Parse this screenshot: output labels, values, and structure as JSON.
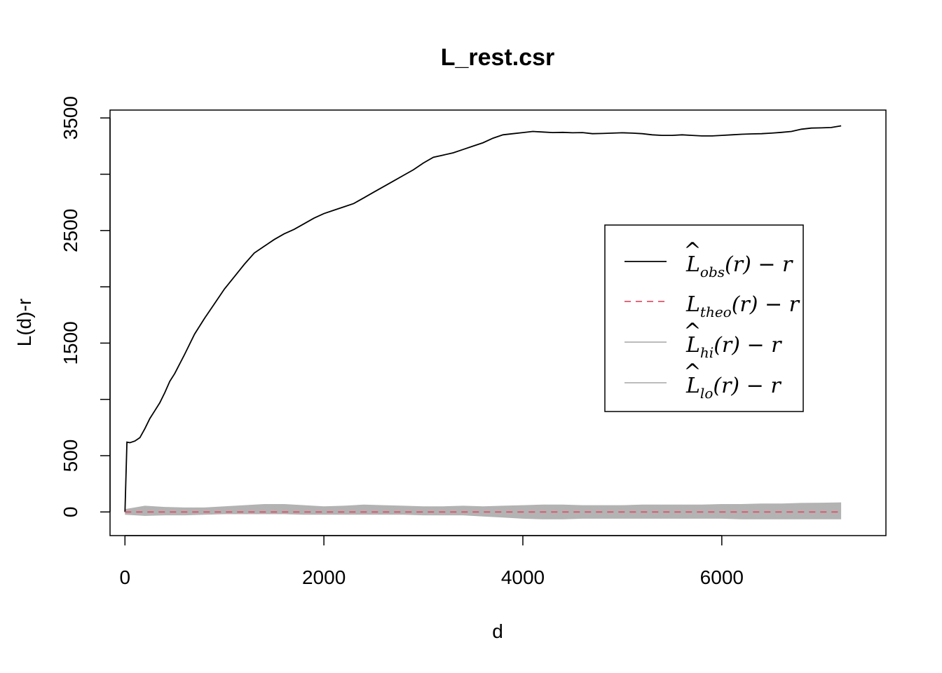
{
  "chart_data": {
    "type": "line",
    "title": "L_rest.csr",
    "xlabel": "d",
    "ylabel": "L(d)-r",
    "xlim": [
      -150,
      7650
    ],
    "ylim": [
      -210,
      3570
    ],
    "x_ticks": [
      0,
      2000,
      4000,
      6000
    ],
    "x_tick_labels": [
      "0",
      "2000",
      "4000",
      "6000"
    ],
    "y_ticks": [
      0,
      500,
      1000,
      1500,
      2000,
      2500,
      3000,
      3500
    ],
    "y_tick_labels": [
      "0",
      "500",
      "",
      "1500",
      "",
      "2500",
      "",
      "3500"
    ],
    "grid": false,
    "legend_position": "right",
    "series": [
      {
        "key": "obs",
        "color": "#000000",
        "style": "solid",
        "x": [
          0,
          20,
          50,
          100,
          150,
          200,
          250,
          300,
          350,
          400,
          450,
          500,
          600,
          700,
          800,
          900,
          1000,
          1100,
          1200,
          1300,
          1400,
          1500,
          1600,
          1700,
          1800,
          1900,
          2000,
          2100,
          2200,
          2300,
          2400,
          2500,
          2600,
          2700,
          2800,
          2900,
          3000,
          3100,
          3200,
          3300,
          3400,
          3500,
          3600,
          3700,
          3800,
          3900,
          4000,
          4100,
          4200,
          4300,
          4400,
          4500,
          4600,
          4700,
          4800,
          4900,
          5000,
          5100,
          5200,
          5300,
          5400,
          5500,
          5600,
          5700,
          5800,
          5900,
          6000,
          6100,
          6200,
          6300,
          6400,
          6500,
          6600,
          6700,
          6800,
          6900,
          7000,
          7100,
          7200
        ],
        "y": [
          0,
          620,
          615,
          630,
          660,
          740,
          830,
          900,
          970,
          1060,
          1160,
          1230,
          1400,
          1580,
          1720,
          1850,
          1980,
          2090,
          2200,
          2300,
          2360,
          2420,
          2470,
          2510,
          2560,
          2610,
          2650,
          2680,
          2710,
          2740,
          2790,
          2840,
          2890,
          2940,
          2990,
          3040,
          3100,
          3150,
          3170,
          3190,
          3220,
          3250,
          3280,
          3320,
          3350,
          3360,
          3370,
          3380,
          3375,
          3370,
          3372,
          3368,
          3370,
          3360,
          3362,
          3365,
          3368,
          3365,
          3360,
          3350,
          3345,
          3345,
          3350,
          3345,
          3340,
          3340,
          3345,
          3350,
          3355,
          3358,
          3360,
          3365,
          3372,
          3380,
          3400,
          3410,
          3412,
          3415,
          3430
        ]
      },
      {
        "key": "theo",
        "color": "#df536b",
        "style": "dashed",
        "x": [
          0,
          7200
        ],
        "y": [
          0,
          0
        ]
      }
    ],
    "envelope": {
      "color": "#b3b3b3",
      "x": [
        0,
        200,
        400,
        600,
        800,
        1000,
        1200,
        1400,
        1600,
        1800,
        2000,
        2200,
        2400,
        2600,
        2800,
        3000,
        3200,
        3400,
        3600,
        3800,
        4000,
        4200,
        4400,
        4600,
        4800,
        5000,
        5200,
        5400,
        5600,
        5800,
        6000,
        6200,
        6400,
        6600,
        6800,
        7000,
        7200
      ],
      "hi": [
        25,
        55,
        45,
        40,
        40,
        50,
        60,
        70,
        70,
        60,
        50,
        55,
        65,
        60,
        55,
        50,
        50,
        55,
        50,
        55,
        60,
        65,
        65,
        60,
        60,
        60,
        65,
        65,
        65,
        65,
        70,
        70,
        75,
        75,
        80,
        82,
        85
      ],
      "lo": [
        -25,
        -35,
        -30,
        -30,
        -25,
        -20,
        -20,
        -20,
        -20,
        -25,
        -25,
        -25,
        -25,
        -25,
        -25,
        -30,
        -30,
        -30,
        -40,
        -50,
        -60,
        -65,
        -65,
        -60,
        -60,
        -60,
        -60,
        -60,
        -60,
        -60,
        -60,
        -65,
        -65,
        -65,
        -65,
        -65,
        -65
      ]
    },
    "legend": [
      {
        "main": "L",
        "hat": true,
        "sub": "obs",
        "suffix": "(r) − r",
        "color": "#000000",
        "style": "solid"
      },
      {
        "main": "L",
        "hat": false,
        "sub": "theo",
        "suffix": "(r) − r",
        "color": "#df536b",
        "style": "dashed"
      },
      {
        "main": "L",
        "hat": true,
        "sub": "hi",
        "suffix": "(r) − r",
        "color": "#b3b3b3",
        "style": "solid"
      },
      {
        "main": "L",
        "hat": true,
        "sub": "lo",
        "suffix": "(r) − r",
        "color": "#b3b3b3",
        "style": "solid"
      }
    ]
  }
}
